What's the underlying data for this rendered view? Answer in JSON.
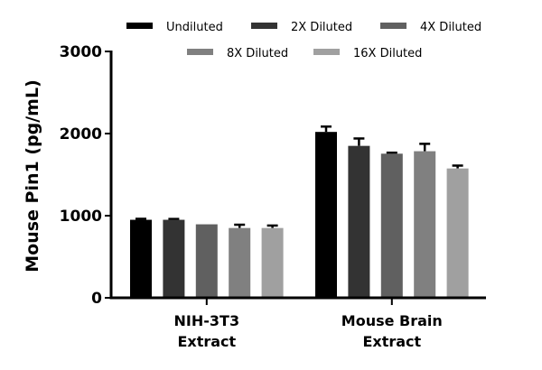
{
  "chart_data": {
    "type": "bar",
    "title": "",
    "xlabel": "",
    "ylabel": "Mouse Pin1 (pg/mL)",
    "ylim": [
      0,
      3000
    ],
    "yticks": [
      "0",
      "1000",
      "2000",
      "3000"
    ],
    "grid": false,
    "legend_placement": "top",
    "categories": [
      [
        "NIH-3T3",
        "Extract"
      ],
      [
        "Mouse Brain",
        "Extract"
      ]
    ],
    "series": [
      {
        "name": "Undiluted",
        "color": "#000000",
        "values": [
          950,
          2020
        ],
        "error": [
          12,
          65
        ]
      },
      {
        "name": "2X Diluted",
        "color": "#333333",
        "values": [
          950,
          1850
        ],
        "error": [
          10,
          90
        ]
      },
      {
        "name": "4X Diluted",
        "color": "#606060",
        "values": [
          895,
          1755
        ],
        "error": [
          0,
          12
        ]
      },
      {
        "name": "8X Diluted",
        "color": "#808080",
        "values": [
          850,
          1785
        ],
        "error": [
          40,
          90
        ]
      },
      {
        "name": "16X Diluted",
        "color": "#a0a0a0",
        "values": [
          850,
          1575
        ],
        "error": [
          30,
          35
        ]
      }
    ]
  }
}
